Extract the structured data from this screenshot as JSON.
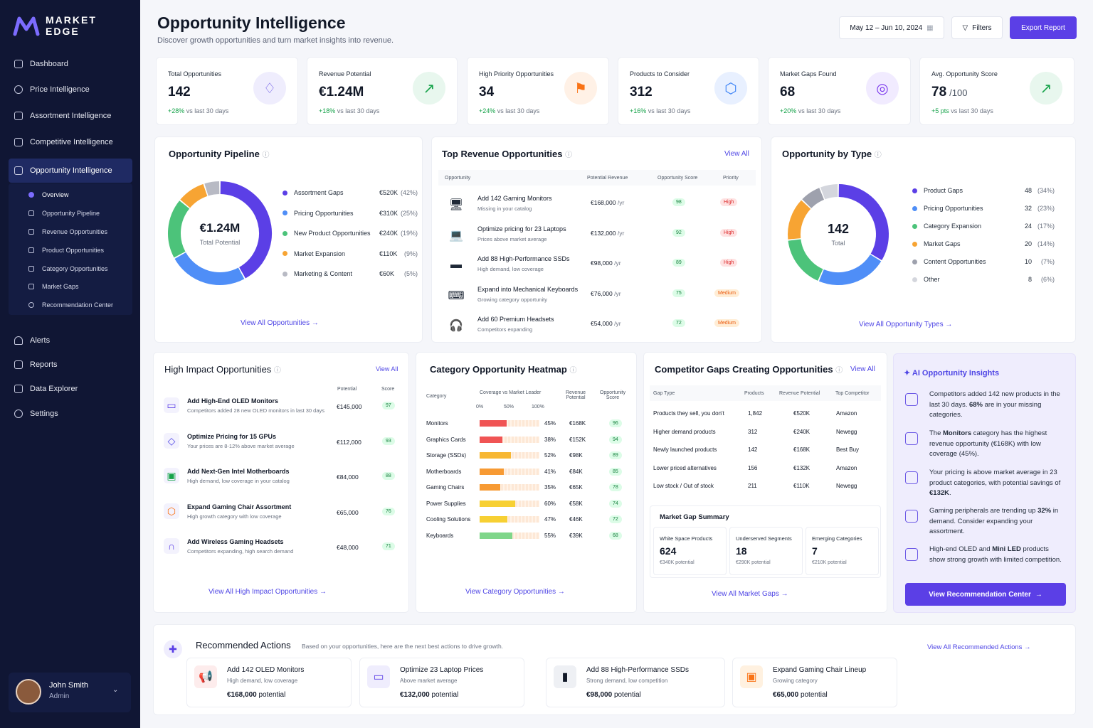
{
  "brand": {
    "line1": "MARKET",
    "line2": "EDGE"
  },
  "nav": {
    "items": [
      {
        "label": "Dashboard"
      },
      {
        "label": "Price Intelligence"
      },
      {
        "label": "Assortment Intelligence"
      },
      {
        "label": "Competitive Intelligence"
      },
      {
        "label": "Opportunity Intelligence"
      }
    ],
    "sub": [
      {
        "label": "Overview"
      },
      {
        "label": "Opportunity Pipeline"
      },
      {
        "label": "Revenue Opportunities"
      },
      {
        "label": "Product Opportunities"
      },
      {
        "label": "Category Opportunities"
      },
      {
        "label": "Market Gaps"
      },
      {
        "label": "Recommendation Center"
      }
    ],
    "bottom": [
      {
        "label": "Alerts"
      },
      {
        "label": "Reports"
      },
      {
        "label": "Data Explorer"
      },
      {
        "label": "Settings"
      }
    ]
  },
  "user": {
    "name": "John Smith",
    "role": "Admin"
  },
  "header": {
    "title": "Opportunity Intelligence",
    "subtitle": "Discover growth opportunities and turn market insights into revenue.",
    "date": "May 12 – Jun 10, 2024",
    "filters": "Filters",
    "export": "Export Report"
  },
  "kpis": [
    {
      "title": "Total Opportunities",
      "value": "142",
      "suffix": "",
      "delta": "+28%",
      "note": "vs last 30 days",
      "icon": "lightbulb-icon",
      "color": "#6d5ae6",
      "bg": "#efedfd"
    },
    {
      "title": "Revenue Potential",
      "value": "€1.24M",
      "suffix": "",
      "delta": "+18%",
      "note": "vs last 30 days",
      "icon": "trend-up-icon",
      "color": "#16a34a",
      "bg": "#e8f7ee"
    },
    {
      "title": "High Priority Opportunities",
      "value": "34",
      "suffix": "",
      "delta": "+24%",
      "note": "vs last 30 days",
      "icon": "flag-icon",
      "color": "#f97316",
      "bg": "#fff1e6"
    },
    {
      "title": "Products to Consider",
      "value": "312",
      "suffix": "",
      "delta": "+16%",
      "note": "vs last 30 days",
      "icon": "cube-icon",
      "color": "#3b82f6",
      "bg": "#e8f0ff"
    },
    {
      "title": "Market Gaps Found",
      "value": "68",
      "suffix": "",
      "delta": "+20%",
      "note": "vs last 30 days",
      "icon": "target-icon",
      "color": "#7c3aed",
      "bg": "#f1ebff"
    },
    {
      "title": "Avg. Opportunity Score",
      "value": "78",
      "suffix": "/100",
      "delta": "+5 pts",
      "note": "vs last 30 days",
      "icon": "trend-up-icon",
      "color": "#16a34a",
      "bg": "#e8f7ee"
    }
  ],
  "pipeline": {
    "title": "Opportunity Pipeline",
    "center_value": "€1.24M",
    "center_label": "Total Potential",
    "link": "View All Opportunities",
    "items": [
      {
        "label": "Assortment Gaps",
        "value": "€520K",
        "pct": "(42%)",
        "share": 42,
        "color": "#5b3fe6"
      },
      {
        "label": "Pricing Opportunities",
        "value": "€310K",
        "pct": "(25%)",
        "share": 25,
        "color": "#4f8ef7"
      },
      {
        "label": "New Product Opportunities",
        "value": "€240K",
        "pct": "(19%)",
        "share": 19,
        "color": "#4cc37a"
      },
      {
        "label": "Market Expansion",
        "value": "€110K",
        "pct": "(9%)",
        "share": 9,
        "color": "#f7a433"
      },
      {
        "label": "Marketing & Content",
        "value": "€60K",
        "pct": "(5%)",
        "share": 5,
        "color": "#b8bac4"
      }
    ]
  },
  "top_revenue": {
    "title": "Top Revenue Opportunities",
    "link": "View All",
    "headers": [
      "Opportunity",
      "Potential Revenue",
      "Opportunity Score",
      "Priority"
    ],
    "rows": [
      {
        "name": "Add 142 Gaming Monitors",
        "desc": "Missing in your catalog",
        "rev": "€168,000",
        "unit": "/yr",
        "score": "98",
        "priority": "High",
        "cls": "r",
        "icon": "monitor-icon"
      },
      {
        "name": "Optimize pricing for 23 Laptops",
        "desc": "Prices above market average",
        "rev": "€132,000",
        "unit": "/yr",
        "score": "92",
        "priority": "High",
        "cls": "r",
        "icon": "laptop-icon"
      },
      {
        "name": "Add 88 High-Performance SSDs",
        "desc": "High demand, low coverage",
        "rev": "€98,000",
        "unit": "/yr",
        "score": "89",
        "priority": "High",
        "cls": "r",
        "icon": "ssd-icon"
      },
      {
        "name": "Expand into Mechanical Keyboards",
        "desc": "Growing category opportunity",
        "rev": "€76,000",
        "unit": "/yr",
        "score": "75",
        "priority": "Medium",
        "cls": "o",
        "icon": "keyboard-icon"
      },
      {
        "name": "Add 60 Premium Headsets",
        "desc": "Competitors expanding",
        "rev": "€54,000",
        "unit": "/yr",
        "score": "72",
        "priority": "Medium",
        "cls": "o",
        "icon": "headset-icon"
      }
    ]
  },
  "by_type": {
    "title": "Opportunity by Type",
    "center_value": "142",
    "center_label": "Total",
    "link": "View All Opportunity Types",
    "items": [
      {
        "label": "Product Gaps",
        "count": "48",
        "pct": "(34%)",
        "share": 34,
        "color": "#5b3fe6"
      },
      {
        "label": "Pricing Opportunities",
        "count": "32",
        "pct": "(23%)",
        "share": 23,
        "color": "#4f8ef7"
      },
      {
        "label": "Category Expansion",
        "count": "24",
        "pct": "(17%)",
        "share": 17,
        "color": "#4cc37a"
      },
      {
        "label": "Market Gaps",
        "count": "20",
        "pct": "(14%)",
        "share": 14,
        "color": "#f7a433"
      },
      {
        "label": "Content Opportunities",
        "count": "10",
        "pct": "(7%)",
        "share": 7,
        "color": "#9ea1ad"
      },
      {
        "label": "Other",
        "count": "8",
        "pct": "(6%)",
        "share": 6,
        "color": "#d4d6dd"
      }
    ]
  },
  "high_impact": {
    "title": "High Impact Opportunities",
    "link": "View All",
    "h_potential": "Potential",
    "h_score": "Score",
    "footer": "View All High Impact Opportunities",
    "rows": [
      {
        "name": "Add High-End OLED Monitors",
        "desc": "Competitors added 28 new OLED monitors in last 30 days",
        "value": "€145,000",
        "score": "97",
        "icon": "monitor-icon",
        "color": "#5b3fe6"
      },
      {
        "name": "Optimize Pricing for 15 GPUs",
        "desc": "Your prices are 8-12% above market average",
        "value": "€112,000",
        "score": "93",
        "icon": "tag-icon",
        "color": "#4f46e5"
      },
      {
        "name": "Add Next-Gen Intel Motherboards",
        "desc": "High demand, low coverage in your catalog",
        "value": "€84,000",
        "score": "88",
        "icon": "chip-icon",
        "color": "#16a34a"
      },
      {
        "name": "Expand Gaming Chair Assortment",
        "desc": "High growth category with low coverage",
        "value": "€65,000",
        "score": "76",
        "icon": "box-icon",
        "color": "#f97316"
      },
      {
        "name": "Add Wireless Gaming Headsets",
        "desc": "Competitors expanding, high search demand",
        "value": "€48,000",
        "score": "71",
        "icon": "headset-icon",
        "color": "#5b3fe6"
      }
    ]
  },
  "heatmap": {
    "title": "Category Opportunity Heatmap",
    "h_category": "Category",
    "h_coverage": "Coverage vs Market Leader",
    "ticks": [
      "0%",
      "50%",
      "100%"
    ],
    "h_revenue": "Revenue Potential",
    "h_score": "Opportunity Score",
    "footer": "View Category Opportunities",
    "rows": [
      {
        "name": "Monitors",
        "pct": "45%",
        "cov": 45,
        "rev": "€168K",
        "score": "96",
        "color": "#f05454"
      },
      {
        "name": "Graphics Cards",
        "pct": "38%",
        "cov": 38,
        "rev": "€152K",
        "score": "94",
        "color": "#f05454"
      },
      {
        "name": "Storage (SSDs)",
        "pct": "52%",
        "cov": 52,
        "rev": "€98K",
        "score": "89",
        "color": "#f7b733"
      },
      {
        "name": "Motherboards",
        "pct": "41%",
        "cov": 41,
        "rev": "€84K",
        "score": "85",
        "color": "#f79a33"
      },
      {
        "name": "Gaming Chairs",
        "pct": "35%",
        "cov": 35,
        "rev": "€65K",
        "score": "78",
        "color": "#f79a33"
      },
      {
        "name": "Power Supplies",
        "pct": "60%",
        "cov": 60,
        "rev": "€58K",
        "score": "74",
        "color": "#f7d033"
      },
      {
        "name": "Cooling Solutions",
        "pct": "47%",
        "cov": 47,
        "rev": "€46K",
        "score": "72",
        "color": "#f7d033"
      },
      {
        "name": "Keyboards",
        "pct": "55%",
        "cov": 55,
        "rev": "€39K",
        "score": "68",
        "color": "#7fd68a"
      }
    ]
  },
  "gaps": {
    "title": "Competitor Gaps Creating Opportunities",
    "link": "View All",
    "headers": [
      "Gap Type",
      "Products",
      "Revenue Potential",
      "Top Competitor"
    ],
    "rows": [
      {
        "type": "Products they sell, you don't",
        "products": "1,842",
        "rev": "€520K",
        "comp": "Amazon"
      },
      {
        "type": "Higher demand products",
        "products": "312",
        "rev": "€240K",
        "comp": "Newegg"
      },
      {
        "type": "Newly launched products",
        "products": "142",
        "rev": "€168K",
        "comp": "Best Buy"
      },
      {
        "type": "Lower priced alternatives",
        "products": "156",
        "rev": "€132K",
        "comp": "Amazon"
      },
      {
        "type": "Low stock / Out of stock",
        "products": "211",
        "rev": "€110K",
        "comp": "Newegg"
      }
    ],
    "summary_title": "Market Gap Summary",
    "summary": [
      {
        "label": "White Space Products",
        "value": "624",
        "note": "€340K potential"
      },
      {
        "label": "Underserved Segments",
        "value": "18",
        "note": "€290K potential"
      },
      {
        "label": "Emerging Categories",
        "value": "7",
        "note": "€210K potential"
      }
    ],
    "footer": "View All Market Gaps"
  },
  "ai": {
    "title": "AI Opportunity Insights",
    "button": "View Recommendation Center",
    "insights": [
      {
        "pre": "Competitors added 142 new products in the last 30 days. ",
        "bold": "68%",
        "post": " are in your missing categories."
      },
      {
        "pre": "The ",
        "bold": "Monitors",
        "post": " category has the highest revenue opportunity (€168K) with low coverage (45%)."
      },
      {
        "pre": "Your pricing is above market average in 23 product categories, with potential savings of ",
        "bold": "€132K",
        "post": "."
      },
      {
        "pre": "Gaming peripherals are trending up ",
        "bold": "32%",
        "post": " in demand. Consider expanding your assortment."
      },
      {
        "pre": "High-end OLED and ",
        "bold": "Mini LED",
        "post": " products show strong growth with limited competition."
      }
    ]
  },
  "actions": {
    "title": "Recommended Actions",
    "subtitle": "Based on your opportunities, here are the next best actions to drive growth.",
    "link": "View All Recommended Actions",
    "items": [
      {
        "title": "Add 142 OLED Monitors",
        "desc": "High demand, low coverage",
        "value": "€168,000",
        "unit": "potential",
        "icon": "megaphone-icon",
        "bg": "#fdecec",
        "color": "#ef4444"
      },
      {
        "title": "Optimize 23 Laptop Prices",
        "desc": "Above market average",
        "value": "€132,000",
        "unit": "potential",
        "icon": "laptop-icon",
        "bg": "#efedfd",
        "color": "#5b3fe6"
      },
      {
        "title": "Add 88 High-Performance SSDs",
        "desc": "Strong demand, low competition",
        "value": "€98,000",
        "unit": "potential",
        "icon": "ssd-icon",
        "bg": "#eef0f4",
        "color": "#111827"
      },
      {
        "title": "Expand Gaming Chair Lineup",
        "desc": "Growing category",
        "value": "€65,000",
        "unit": "potential",
        "icon": "chair-icon",
        "bg": "#fff1e0",
        "color": "#f97316"
      }
    ]
  }
}
